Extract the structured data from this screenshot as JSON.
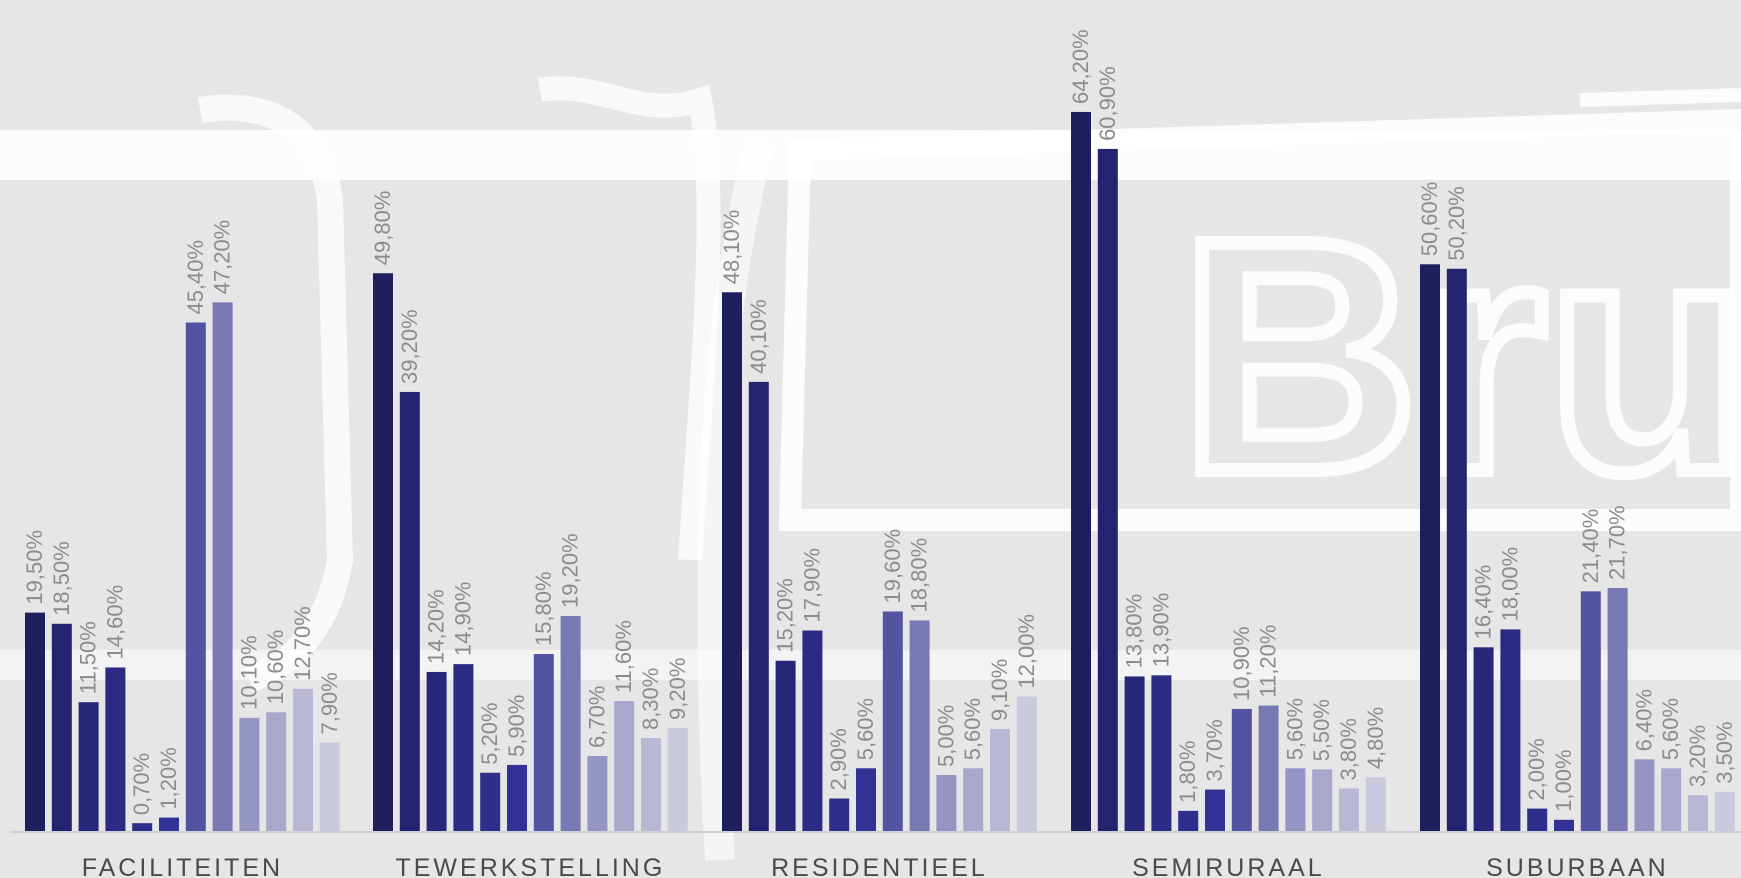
{
  "chart_data": {
    "type": "bar",
    "categories": [
      "FACILITEITEN",
      "TEWERKSTELLING",
      "RESIDENTIEEL",
      "SEMIRURAAL",
      "SUBURBAAN"
    ],
    "series": [
      {
        "values": [
          19.5,
          49.8,
          48.1,
          64.2,
          50.6
        ],
        "labels": [
          "19,50%",
          "49,80%",
          "48,10%",
          "64,20%",
          "50,60%"
        ],
        "color": "#1f1f5e"
      },
      {
        "values": [
          18.5,
          39.2,
          40.1,
          60.9,
          50.2
        ],
        "labels": [
          "18,50%",
          "39,20%",
          "40,10%",
          "60,90%",
          "50,20%"
        ],
        "color": "#232370"
      },
      {
        "values": [
          11.5,
          14.2,
          15.2,
          13.8,
          16.4
        ],
        "labels": [
          "11,50%",
          "14,20%",
          "15,20%",
          "13,80%",
          "16,40%"
        ],
        "color": "#27277a"
      },
      {
        "values": [
          14.6,
          14.9,
          17.9,
          13.9,
          18.0
        ],
        "labels": [
          "14,60%",
          "14,90%",
          "17,90%",
          "13,90%",
          "18,00%"
        ],
        "color": "#2b2b84"
      },
      {
        "values": [
          0.7,
          5.2,
          2.9,
          1.8,
          2.0
        ],
        "labels": [
          "0,70%",
          "5,20%",
          "2,90%",
          "1,80%",
          "2,00%"
        ],
        "color": "#2e2e8c"
      },
      {
        "values": [
          1.2,
          5.9,
          5.6,
          3.7,
          1.0
        ],
        "labels": [
          "1,20%",
          "5,90%",
          "5,60%",
          "3,70%",
          "1,00%"
        ],
        "color": "#323296"
      },
      {
        "values": [
          45.4,
          15.8,
          19.6,
          10.9,
          21.4
        ],
        "labels": [
          "45,40%",
          "15,80%",
          "19,60%",
          "10,90%",
          "21,40%"
        ],
        "color": "#5353a3"
      },
      {
        "values": [
          47.2,
          19.2,
          18.8,
          11.2,
          21.7
        ],
        "labels": [
          "47,20%",
          "19,20%",
          "18,80%",
          "11,20%",
          "21,70%"
        ],
        "color": "#7878b2"
      },
      {
        "values": [
          10.1,
          6.7,
          5.0,
          5.6,
          6.4
        ],
        "labels": [
          "10,10%",
          "6,70%",
          "5,00%",
          "5,60%",
          "6,40%"
        ],
        "color": "#9595c3"
      },
      {
        "values": [
          10.6,
          11.6,
          5.6,
          5.5,
          5.6
        ],
        "labels": [
          "10,60%",
          "11,60%",
          "5,60%",
          "5,50%",
          "5,60%"
        ],
        "color": "#a8a8cd"
      },
      {
        "values": [
          12.7,
          8.3,
          9.1,
          3.8,
          3.2
        ],
        "labels": [
          "12,70%",
          "8,30%",
          "9,10%",
          "3,80%",
          "3,20%"
        ],
        "color": "#b8b8d5"
      },
      {
        "values": [
          7.9,
          9.2,
          12.0,
          4.8,
          3.5
        ],
        "labels": [
          "7,90%",
          "9,20%",
          "12,00%",
          "4,80%",
          "3,50%"
        ],
        "color": "#cacadf"
      }
    ],
    "ylim": [
      0,
      70
    ],
    "grid": false,
    "legend": "none",
    "title": "",
    "xlabel": "",
    "ylabel": ""
  },
  "background": {
    "color": "#e6e6e6",
    "watermark_color": "#ffffff",
    "watermark_text": "Bru"
  }
}
